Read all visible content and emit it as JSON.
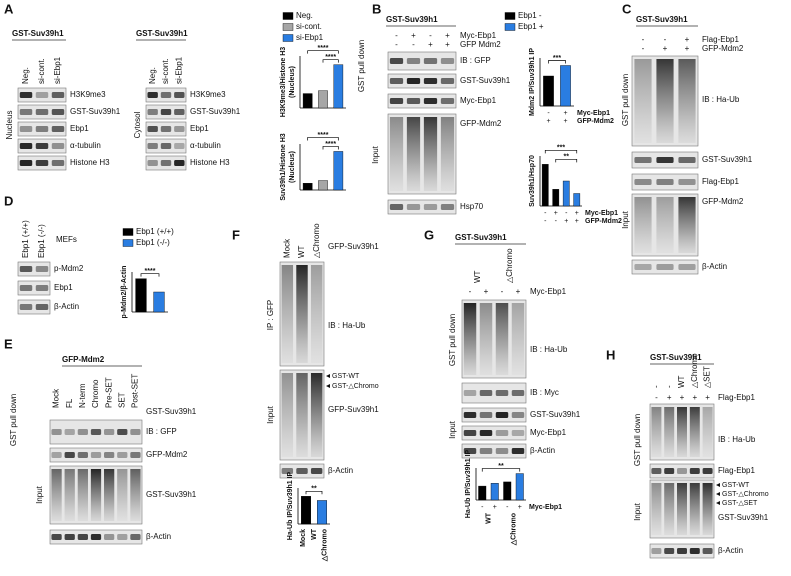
{
  "panels": [
    {
      "label": "A",
      "blots": [
        {
          "title": "GST-Suv39h1",
          "lanes": [
            "Neg.",
            "si-cont.",
            "si-Ebp1"
          ],
          "side": [
            "Nucleus"
          ],
          "rows": [
            "H3K9me3",
            "GST-Suv39h1",
            "Ebp1",
            "α-tubulin",
            "Histone H3"
          ]
        },
        {
          "title": "GST-Suv39h1",
          "lanes": [
            "Neg.",
            "si-cont.",
            "si-Ebp1"
          ],
          "side": [
            "Cytosol"
          ],
          "rows": [
            "H3K9me3",
            "GST-Suv39h1",
            "Ebp1",
            "α-tubulin",
            "Histone H3"
          ]
        }
      ],
      "legend": [
        {
          "name": "Neg.",
          "color": "#000000"
        },
        {
          "name": "si-cont.",
          "color": "#a6a6a6"
        },
        {
          "name": "si-Ebp1",
          "color": "#2a7de1"
        }
      ],
      "charts": [
        {
          "type": "bar",
          "ylabel": [
            "H3K9me3/Histone H3",
            "(Nucleus)"
          ],
          "values": [
            1,
            1.2,
            3
          ],
          "ylim": [
            0,
            3.6
          ],
          "significance": [
            "****",
            "****"
          ]
        },
        {
          "type": "bar",
          "ylabel": [
            "Suv39h1/Histone H3",
            "(Nucleus)"
          ],
          "values": [
            1,
            1.4,
            5.7
          ],
          "ylim": [
            0,
            6.8
          ],
          "significance": [
            "****",
            "****"
          ]
        }
      ]
    },
    {
      "label": "B",
      "blots": [
        {
          "title": "GST-Suv39h1",
          "sign_rows": [
            {
              "name": "Myc-Ebp1",
              "signs": [
                "-",
                "+",
                "-",
                "+"
              ]
            },
            {
              "name": "GFP Mdm2",
              "signs": [
                "-",
                "-",
                "+",
                "+"
              ]
            }
          ],
          "side": [
            "GST pull down",
            "Input"
          ],
          "rows": [
            "IB : GFP",
            "GST-Suv39h1",
            "Myc-Ebp1",
            "GFP-Mdm2",
            "Hsp70"
          ]
        }
      ],
      "legend": [
        {
          "name": "Ebp1 -",
          "color": "#000000"
        },
        {
          "name": "Ebp1 +",
          "color": "#2a7de1"
        }
      ],
      "charts": [
        {
          "type": "bar",
          "ylabel": [
            "Mdm2 IP/Suv39h1 IP"
          ],
          "values": [
            1,
            1.35
          ],
          "colors": [
            "#000000",
            "#2a7de1"
          ],
          "ylim": [
            0,
            1.6
          ],
          "significance": [
            "***"
          ],
          "sign_rows": [
            {
              "name": "Myc-Ebp1",
              "signs": [
                "-",
                "+"
              ]
            },
            {
              "name": "GFP-Mdm2",
              "signs": [
                "+",
                "+"
              ]
            }
          ]
        },
        {
          "type": "bar",
          "ylabel": [
            "Suv39h1/Hsp70"
          ],
          "values": [
            1,
            0.4,
            0.6,
            0.3
          ],
          "colors": [
            "#000000",
            "#000000",
            "#2a7de1",
            "#2a7de1"
          ],
          "ylim": [
            0,
            1.2
          ],
          "significance": [
            "***",
            "**"
          ],
          "sign_rows": [
            {
              "name": "Myc-Ebp1",
              "signs": [
                "-",
                "+",
                "-",
                "+"
              ]
            },
            {
              "name": "GFP-Mdm2",
              "signs": [
                "-",
                "-",
                "+",
                "+"
              ]
            }
          ]
        }
      ]
    },
    {
      "label": "C",
      "blots": [
        {
          "title": "GST-Suv39h1",
          "sign_rows": [
            {
              "name": "Flag-Ebp1",
              "signs": [
                "-",
                "-",
                "+"
              ]
            },
            {
              "name": "GFP-Mdm2",
              "signs": [
                "-",
                "+",
                "+"
              ]
            }
          ],
          "side": [
            "GST pull down",
            "Input"
          ],
          "rows": [
            "IB : Ha-Ub",
            "GST-Suv39h1",
            "Flag-Ebp1",
            "GFP-Mdm2",
            "β-Actin"
          ]
        }
      ]
    },
    {
      "label": "D",
      "blots": [
        {
          "lanes": [
            "Ebp1 (+/+)",
            "Ebp1 (-/-)"
          ],
          "note": "MEFs",
          "side": [],
          "rows": [
            "p-Mdm2",
            "Ebp1",
            "β-Actin"
          ]
        }
      ],
      "legend": [
        {
          "name": "Ebp1 (+/+)",
          "color": "#000000"
        },
        {
          "name": "Ebp1 (-/-)",
          "color": "#2a7de1"
        }
      ],
      "charts": [
        {
          "type": "bar",
          "ylabel": [
            "p-Mdm2/β-Actin"
          ],
          "values": [
            1,
            0.6
          ],
          "colors": [
            "#000000",
            "#2a7de1"
          ],
          "ylim": [
            0,
            1.2
          ],
          "significance": [
            "****"
          ]
        }
      ]
    },
    {
      "label": "E",
      "blots": [
        {
          "title": "GFP-Mdm2",
          "lanes": [
            "Mock",
            "FL",
            "N-term",
            "Chromo",
            "Pre-SET",
            "SET",
            "Post-SET"
          ],
          "lanes_label": "GST-Suv39h1",
          "side": [
            "GST pull down",
            "Input"
          ],
          "rows": [
            "IB : GFP",
            "GFP-Mdm2",
            "GST-Suv39h1",
            "β-Actin"
          ]
        }
      ]
    },
    {
      "label": "F",
      "blots": [
        {
          "lanes": [
            "Mock",
            "WT",
            "△Chromo"
          ],
          "lanes_label": "GFP-Suv39h1",
          "side": [
            "IP : GFP",
            "Input"
          ],
          "rows": [
            "IB : Ha-Ub",
            "GFP-Suv39h1",
            "β-Actin"
          ],
          "markers": [
            "GST-WT",
            "GST-△Chromo"
          ]
        }
      ],
      "charts": [
        {
          "type": "bar",
          "ylabel": [
            "Ha-Ub IP/Suv39h1 IP"
          ],
          "values": [
            1,
            0.85
          ],
          "colors": [
            "#000000",
            "#2a7de1"
          ],
          "ylim": [
            0,
            1.3
          ],
          "significance": [
            "**"
          ],
          "x_labels": [
            "Mock",
            "WT",
            "△Chromo"
          ]
        }
      ]
    },
    {
      "label": "G",
      "blots": [
        {
          "title": "GST-Suv39h1",
          "lanes": [
            "WT",
            "△Chromo"
          ],
          "sign_rows": [
            {
              "name": "Myc-Ebp1",
              "signs": [
                "-",
                "+",
                "-",
                "+"
              ]
            }
          ],
          "side": [
            "GST pull down",
            "Input"
          ],
          "rows": [
            "IB : Ha-Ub",
            "IB : Myc",
            "GST-Suv39h1",
            "Myc-Ebp1",
            "β-Actin"
          ]
        }
      ],
      "charts": [
        {
          "type": "bar",
          "ylabel": [
            "Ha-Ub IP/Suv39h1 IP"
          ],
          "values": [
            1,
            1.2,
            1.3,
            1.9
          ],
          "colors": [
            "#000000",
            "#2a7de1",
            "#000000",
            "#2a7de1"
          ],
          "ylim": [
            0,
            2.3
          ],
          "significance": [
            "**"
          ],
          "sign_rows": [
            {
              "name": "Myc-Ebp1",
              "signs": [
                "-",
                "+",
                "-",
                "+"
              ]
            }
          ],
          "x_labels": [
            "WT",
            "△Chromo"
          ]
        }
      ]
    },
    {
      "label": "H",
      "blots": [
        {
          "title": "GST-Suv39h1",
          "lanes": [
            "-",
            "-",
            "WT",
            "△Chromo",
            "△SET"
          ],
          "sign_rows": [
            {
              "name": "Flag-Ebp1",
              "signs": [
                "-",
                "+",
                "+",
                "+",
                "+"
              ]
            }
          ],
          "side": [
            "GST pull down",
            "Input"
          ],
          "rows": [
            "IB : Ha-Ub",
            "Flag-Ebp1",
            "GST-Suv39h1",
            "β-Actin"
          ],
          "markers": [
            "GST-WT",
            "GST-△Chromo",
            "GST-△SET"
          ]
        }
      ]
    }
  ]
}
